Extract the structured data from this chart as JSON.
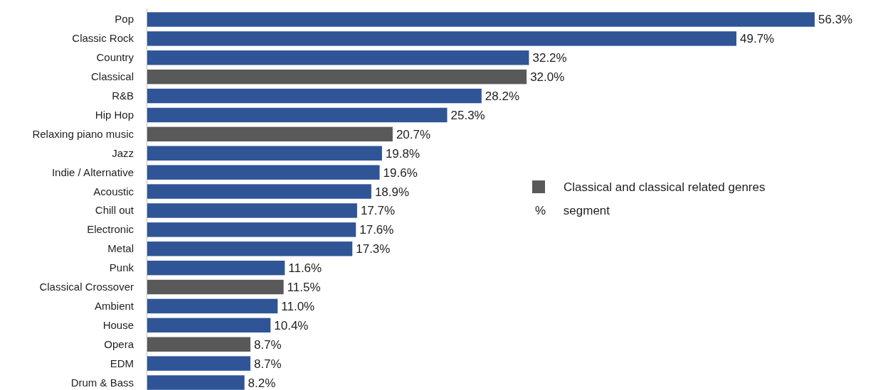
{
  "chart_data": {
    "type": "bar",
    "orientation": "horizontal",
    "legend": "right",
    "categories": [
      "Pop",
      "Classic Rock",
      "Country",
      "Classical",
      "R&B",
      "Hip Hop",
      "Relaxing piano music",
      "Jazz",
      "Indie / Alternative",
      "Acoustic",
      "Chill out",
      "Electronic",
      "Metal",
      "Punk",
      "Classical Crossover",
      "Ambient",
      "House",
      "Opera",
      "EDM",
      "Drum & Bass"
    ],
    "series": [
      {
        "color": "#2f5597",
        "values": [
          56.3,
          49.7,
          32.2,
          null,
          28.2,
          25.3,
          null,
          19.8,
          19.6,
          18.9,
          17.7,
          17.6,
          17.3,
          11.6,
          null,
          11.0,
          10.4,
          null,
          8.7,
          8.2
        ],
        "value_labels": [
          "56.3%",
          "49.7%",
          "32.2%",
          null,
          "28.2%",
          "25.3%",
          null,
          "19.8%",
          "19.6%",
          "18.9%",
          "17.7%",
          "17.6%",
          "17.3%",
          "11.6%",
          null,
          "11.0%",
          "10.4%",
          null,
          "8.7%",
          "8.2%"
        ]
      },
      {
        "name": "Classical and classical related genres",
        "color": "#595959",
        "values": [
          null,
          null,
          null,
          32.0,
          null,
          null,
          20.7,
          null,
          null,
          null,
          null,
          null,
          null,
          null,
          11.5,
          null,
          null,
          8.7,
          null,
          null
        ],
        "value_labels": [
          null,
          null,
          null,
          "32.0%",
          null,
          null,
          "20.7%",
          null,
          null,
          null,
          null,
          null,
          null,
          null,
          "11.5%",
          null,
          null,
          "8.7%",
          null,
          null
        ]
      }
    ],
    "annotations": [
      "% segment"
    ]
  }
}
